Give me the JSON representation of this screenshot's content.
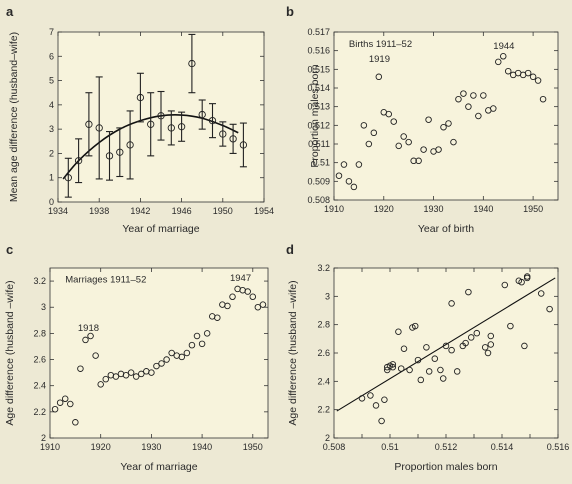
{
  "chart_data": [
    {
      "panel": "a",
      "type": "scatter",
      "xlabel": "Year of marriage",
      "ylabel": "Mean age difference (husband–wife)",
      "xlim": [
        1934,
        1954
      ],
      "ylim": [
        0,
        7
      ],
      "xticks": [
        1934,
        1938,
        1942,
        1946,
        1950,
        1954
      ],
      "yticks": [
        0,
        1,
        2,
        3,
        4,
        5,
        6,
        7
      ],
      "series": [
        {
          "x": [
            1935,
            1936,
            1937,
            1938,
            1939,
            1940,
            1941,
            1942,
            1943,
            1944,
            1945,
            1946,
            1947,
            1948,
            1949,
            1950,
            1951,
            1952
          ],
          "values": [
            1.0,
            1.7,
            3.2,
            3.05,
            1.9,
            2.05,
            2.35,
            4.3,
            3.2,
            3.55,
            3.05,
            3.1,
            5.7,
            3.6,
            3.35,
            2.8,
            2.6,
            2.35
          ],
          "error": [
            0.8,
            0.9,
            1.3,
            2.1,
            1.0,
            1.0,
            1.4,
            1.0,
            1.3,
            1.0,
            0.7,
            0.6,
            1.2,
            0.6,
            0.7,
            0.5,
            0.6,
            0.9
          ]
        }
      ],
      "fit": {
        "x": [
          1934.5,
          1936,
          1938,
          1940,
          1942,
          1944,
          1946,
          1948,
          1950,
          1951.5
        ],
        "values": [
          0.95,
          1.7,
          2.45,
          3.0,
          3.35,
          3.55,
          3.58,
          3.45,
          3.15,
          2.85
        ]
      }
    },
    {
      "panel": "b",
      "type": "scatter",
      "xlabel": "Year of birth",
      "ylabel": "Proportion males born",
      "xlim": [
        1910,
        1955
      ],
      "ylim": [
        0.508,
        0.517
      ],
      "xticks": [
        1910,
        1920,
        1930,
        1940,
        1950
      ],
      "yticks": [
        0.508,
        0.509,
        0.51,
        0.511,
        0.512,
        0.513,
        0.514,
        0.515,
        0.516,
        0.517
      ],
      "annotations": [
        {
          "text": "Births 1911–52",
          "x": 1913,
          "y": 0.5162
        },
        {
          "text": "1919",
          "x": 1917,
          "y": 0.5154
        },
        {
          "text": "1944",
          "x": 1942,
          "y": 0.5161
        }
      ],
      "series": [
        {
          "x": [
            1911,
            1912,
            1913,
            1914,
            1915,
            1916,
            1917,
            1918,
            1919,
            1920,
            1921,
            1922,
            1923,
            1924,
            1925,
            1926,
            1927,
            1928,
            1929,
            1930,
            1931,
            1932,
            1933,
            1934,
            1935,
            1936,
            1937,
            1938,
            1939,
            1940,
            1941,
            1942,
            1943,
            1944,
            1945,
            1946,
            1947,
            1948,
            1949,
            1950,
            1951,
            1952
          ],
          "values": [
            0.5093,
            0.5099,
            0.509,
            0.5087,
            0.5099,
            0.512,
            0.511,
            0.5116,
            0.5146,
            0.5127,
            0.5126,
            0.5122,
            0.5109,
            0.5114,
            0.5111,
            0.5101,
            0.5101,
            0.5107,
            0.5123,
            0.5106,
            0.5107,
            0.5119,
            0.5121,
            0.5111,
            0.5134,
            0.5137,
            0.513,
            0.5136,
            0.5125,
            0.5136,
            0.5128,
            0.5129,
            0.5154,
            0.5157,
            0.5149,
            0.5147,
            0.5148,
            0.5147,
            0.5148,
            0.5146,
            0.5144,
            0.5134
          ]
        }
      ]
    },
    {
      "panel": "c",
      "type": "scatter",
      "xlabel": "Year of marriage",
      "ylabel": "Age difference (husband –wife)",
      "xlim": [
        1910,
        1953
      ],
      "ylim": [
        2.0,
        3.3
      ],
      "xticks": [
        1910,
        1920,
        1930,
        1940,
        1950
      ],
      "yticks": [
        2.0,
        2.2,
        2.4,
        2.6,
        2.8,
        3.0,
        3.2
      ],
      "ytick_labels": [
        "2",
        "2.2",
        "2.4",
        "2.6",
        "2.8",
        "3",
        "3.2"
      ],
      "annotations": [
        {
          "text": "Marriages 1911–52",
          "x": 1913,
          "y": 3.19
        },
        {
          "text": "1918",
          "x": 1915.5,
          "y": 2.82
        },
        {
          "text": "1947",
          "x": 1945.5,
          "y": 3.2
        }
      ],
      "series": [
        {
          "x": [
            1911,
            1912,
            1913,
            1914,
            1915,
            1916,
            1917,
            1918,
            1919,
            1920,
            1921,
            1922,
            1923,
            1924,
            1925,
            1926,
            1927,
            1928,
            1929,
            1930,
            1931,
            1932,
            1933,
            1934,
            1935,
            1936,
            1937,
            1938,
            1939,
            1940,
            1941,
            1942,
            1943,
            1944,
            1945,
            1946,
            1947,
            1948,
            1949,
            1950,
            1951,
            1952
          ],
          "values": [
            2.22,
            2.27,
            2.3,
            2.26,
            2.12,
            2.53,
            2.75,
            2.78,
            2.63,
            2.41,
            2.45,
            2.48,
            2.47,
            2.49,
            2.48,
            2.5,
            2.47,
            2.49,
            2.51,
            2.5,
            2.55,
            2.57,
            2.6,
            2.65,
            2.63,
            2.62,
            2.65,
            2.71,
            2.78,
            2.72,
            2.8,
            2.93,
            2.92,
            3.02,
            3.01,
            3.08,
            3.14,
            3.13,
            3.12,
            3.08,
            3.0,
            3.02
          ]
        }
      ]
    },
    {
      "panel": "d",
      "type": "scatter",
      "xlabel": "Proportion males born",
      "ylabel": "Age difference (husband –wife)",
      "xlim": [
        0.508,
        0.516
      ],
      "ylim": [
        2.0,
        3.2
      ],
      "xticks": [
        0.508,
        0.509,
        0.51,
        0.511,
        0.512,
        0.513,
        0.514,
        0.515,
        0.516
      ],
      "xtick_labels": [
        "0.508",
        "",
        "0.51",
        "",
        "0.512",
        "",
        "0.514",
        "",
        "0.516"
      ],
      "yticks": [
        2.0,
        2.2,
        2.4,
        2.6,
        2.8,
        3.0,
        3.2
      ],
      "ytick_labels": [
        "2",
        "2.2",
        "2.4",
        "2.6",
        "2.8",
        "3",
        "3.2"
      ],
      "fit": {
        "x": [
          0.5081,
          0.5159
        ],
        "values": [
          2.19,
          3.13
        ]
      },
      "series": [
        {
          "x": [
            0.509,
            0.5093,
            0.5095,
            0.5097,
            0.5098,
            0.5099,
            0.5099,
            0.51,
            0.5101,
            0.5101,
            0.5103,
            0.5104,
            0.5105,
            0.5107,
            0.5108,
            0.5109,
            0.511,
            0.5111,
            0.5113,
            0.5114,
            0.5116,
            0.5118,
            0.5119,
            0.512,
            0.5122,
            0.5122,
            0.5124,
            0.5126,
            0.5127,
            0.5128,
            0.5129,
            0.5131,
            0.5134,
            0.5135,
            0.5136,
            0.5136,
            0.5141,
            0.5143,
            0.5146,
            0.5147,
            0.5148,
            0.5149,
            0.5149,
            0.5154,
            0.5157
          ],
          "values": [
            2.28,
            2.3,
            2.23,
            2.12,
            2.27,
            2.5,
            2.48,
            2.51,
            2.52,
            2.5,
            2.75,
            2.49,
            2.63,
            2.48,
            2.78,
            2.79,
            2.55,
            2.41,
            2.64,
            2.47,
            2.56,
            2.48,
            2.42,
            2.65,
            2.62,
            2.95,
            2.47,
            2.65,
            2.67,
            3.03,
            2.71,
            2.74,
            2.64,
            2.6,
            2.72,
            2.66,
            3.08,
            2.79,
            3.11,
            3.1,
            2.65,
            3.13,
            3.14,
            3.02,
            2.91
          ]
        }
      ]
    }
  ]
}
